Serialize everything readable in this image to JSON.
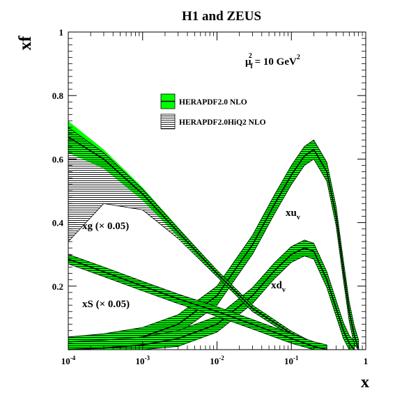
{
  "chart_data": {
    "type": "line",
    "title": "H1 and ZEUS",
    "xlabel": "x",
    "ylabel": "xf",
    "xscale": "log",
    "xlim": [
      0.0001,
      1
    ],
    "ylim": [
      0,
      1
    ],
    "x_ticks": [
      {
        "base": "10",
        "exp": "-4"
      },
      {
        "base": "10",
        "exp": "-3"
      },
      {
        "base": "10",
        "exp": "-2"
      },
      {
        "base": "10",
        "exp": "-1"
      },
      {
        "base": "1",
        "exp": ""
      }
    ],
    "y_ticks": [
      "0.2",
      "0.4",
      "0.6",
      "0.8",
      "1"
    ],
    "annotation": {
      "mu": "μ",
      "sub": "f",
      "sup": "2",
      "rest": " = 10 GeV",
      "unit_sup": "2"
    },
    "legend": {
      "position": "top-center",
      "entries": [
        {
          "label": "HERAPDF2.0 NLO",
          "style": "green-band"
        },
        {
          "label": "HERAPDF2.0HiQ2 NLO",
          "style": "hatched-band"
        }
      ]
    },
    "series": [
      {
        "name": "xu_v",
        "label_main": "xu",
        "label_sub": "v",
        "x": [
          0.0001,
          0.0003,
          0.001,
          0.003,
          0.01,
          0.03,
          0.06,
          0.1,
          0.15,
          0.2,
          0.3,
          0.4,
          0.5,
          0.6,
          0.7,
          0.8
        ],
        "values": [
          0.01,
          0.02,
          0.04,
          0.08,
          0.17,
          0.33,
          0.46,
          0.55,
          0.61,
          0.63,
          0.56,
          0.42,
          0.25,
          0.12,
          0.045,
          0.0
        ],
        "band": 0.03
      },
      {
        "name": "xd_v",
        "label_main": "xd",
        "label_sub": "v",
        "x": [
          0.0001,
          0.0003,
          0.001,
          0.003,
          0.01,
          0.03,
          0.06,
          0.1,
          0.15,
          0.2,
          0.3,
          0.4,
          0.5,
          0.6,
          0.7
        ],
        "values": [
          0.0,
          0.005,
          0.015,
          0.035,
          0.08,
          0.17,
          0.25,
          0.3,
          0.32,
          0.31,
          0.22,
          0.13,
          0.06,
          0.02,
          0.0
        ],
        "band": 0.025
      },
      {
        "name": "xg",
        "label": "xg (× 0.05)",
        "x": [
          0.0001,
          0.0003,
          0.001,
          0.003,
          0.01,
          0.03,
          0.1,
          0.2,
          0.3
        ],
        "values": [
          0.67,
          0.6,
          0.49,
          0.37,
          0.24,
          0.13,
          0.05,
          0.015,
          0.0
        ],
        "band_lo": [
          0.05,
          0.03,
          0.02,
          0.015,
          0.01,
          0.01,
          0.008,
          0.006,
          0.004
        ],
        "band_hi": [
          0.05,
          0.03,
          0.02,
          0.015,
          0.01,
          0.01,
          0.008,
          0.006,
          0.004
        ],
        "hiq2_lo": [
          0.33,
          0.14,
          0.05,
          0.02,
          0.01,
          0.01,
          0.008,
          0.006,
          0.004
        ],
        "hiq2_hi": [
          0.03,
          0.02,
          0.015,
          0.012,
          0.01,
          0.01,
          0.008,
          0.006,
          0.004
        ]
      },
      {
        "name": "xS",
        "label": "xS (× 0.05)",
        "x": [
          0.0001,
          0.0003,
          0.001,
          0.003,
          0.01,
          0.03,
          0.1,
          0.2,
          0.3
        ],
        "values": [
          0.285,
          0.245,
          0.2,
          0.16,
          0.12,
          0.08,
          0.035,
          0.01,
          0.0
        ],
        "band": 0.015
      }
    ]
  }
}
